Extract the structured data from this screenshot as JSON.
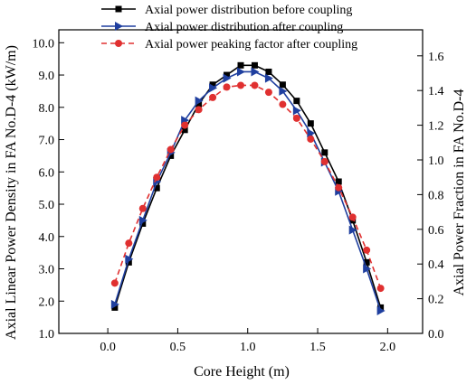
{
  "chart_data": {
    "type": "line",
    "xlabel": "Core Height (m)",
    "ylabel_left": "Axial Linear Power Density in FA No.D-4 (kW/m)",
    "ylabel_right": "Axial Power Fraction in FA No.D-4",
    "xlim": [
      -0.35,
      2.25
    ],
    "ylim_left": [
      1.0,
      10.4
    ],
    "ylim_right": [
      0.0,
      1.75
    ],
    "x_ticks": [
      0.0,
      0.5,
      1.0,
      1.5,
      2.0
    ],
    "x_tick_labels": [
      "0.0",
      "0.5",
      "1.0",
      "1.5",
      "2.0"
    ],
    "y_left_ticks": [
      1.0,
      2.0,
      3.0,
      4.0,
      5.0,
      6.0,
      7.0,
      8.0,
      9.0,
      10.0
    ],
    "y_left_tick_labels": [
      "1.0",
      "2.0",
      "3.0",
      "4.0",
      "5.0",
      "6.0",
      "7.0",
      "8.0",
      "9.0",
      "10.0"
    ],
    "y_right_ticks": [
      0.0,
      0.2,
      0.4,
      0.6,
      0.8,
      1.0,
      1.2,
      1.4,
      1.6
    ],
    "y_right_tick_labels": [
      "0.0",
      "0.2",
      "0.4",
      "0.6",
      "0.8",
      "1.0",
      "1.2",
      "1.4",
      "1.6"
    ],
    "grid": false,
    "legend_position": "top-center",
    "series": [
      {
        "name": "Axial power distribution before coupling",
        "axis": "left",
        "marker": "square",
        "line_style": "solid",
        "color": "#000000",
        "x": [
          0.05,
          0.15,
          0.25,
          0.35,
          0.45,
          0.55,
          0.65,
          0.75,
          0.85,
          0.95,
          1.05,
          1.15,
          1.25,
          1.35,
          1.45,
          1.55,
          1.65,
          1.75,
          1.85,
          1.95
        ],
        "y": [
          1.8,
          3.2,
          4.4,
          5.5,
          6.5,
          7.3,
          8.1,
          8.7,
          9.0,
          9.3,
          9.3,
          9.1,
          8.7,
          8.2,
          7.5,
          6.6,
          5.7,
          4.5,
          3.2,
          1.8
        ]
      },
      {
        "name": "Axial power distribution after coupling",
        "axis": "left",
        "marker": "triangle-right",
        "line_style": "solid",
        "color": "#1f3f9f",
        "x": [
          0.05,
          0.15,
          0.25,
          0.35,
          0.45,
          0.55,
          0.65,
          0.75,
          0.85,
          0.95,
          1.05,
          1.15,
          1.25,
          1.35,
          1.45,
          1.55,
          1.65,
          1.75,
          1.85,
          1.95
        ],
        "y": [
          1.9,
          3.3,
          4.5,
          5.7,
          6.6,
          7.6,
          8.2,
          8.6,
          8.9,
          9.1,
          9.1,
          8.9,
          8.5,
          7.9,
          7.2,
          6.3,
          5.4,
          4.2,
          3.0,
          1.7
        ]
      },
      {
        "name": "Axial power peaking factor after coupling",
        "axis": "right",
        "marker": "circle",
        "line_style": "dashed",
        "color": "#e03030",
        "x": [
          0.05,
          0.15,
          0.25,
          0.35,
          0.45,
          0.55,
          0.65,
          0.75,
          0.85,
          0.95,
          1.05,
          1.15,
          1.25,
          1.35,
          1.45,
          1.55,
          1.65,
          1.75,
          1.85,
          1.95
        ],
        "y": [
          0.29,
          0.52,
          0.72,
          0.9,
          1.06,
          1.2,
          1.29,
          1.36,
          1.42,
          1.43,
          1.43,
          1.39,
          1.32,
          1.24,
          1.12,
          0.99,
          0.84,
          0.67,
          0.48,
          0.26
        ]
      }
    ]
  }
}
